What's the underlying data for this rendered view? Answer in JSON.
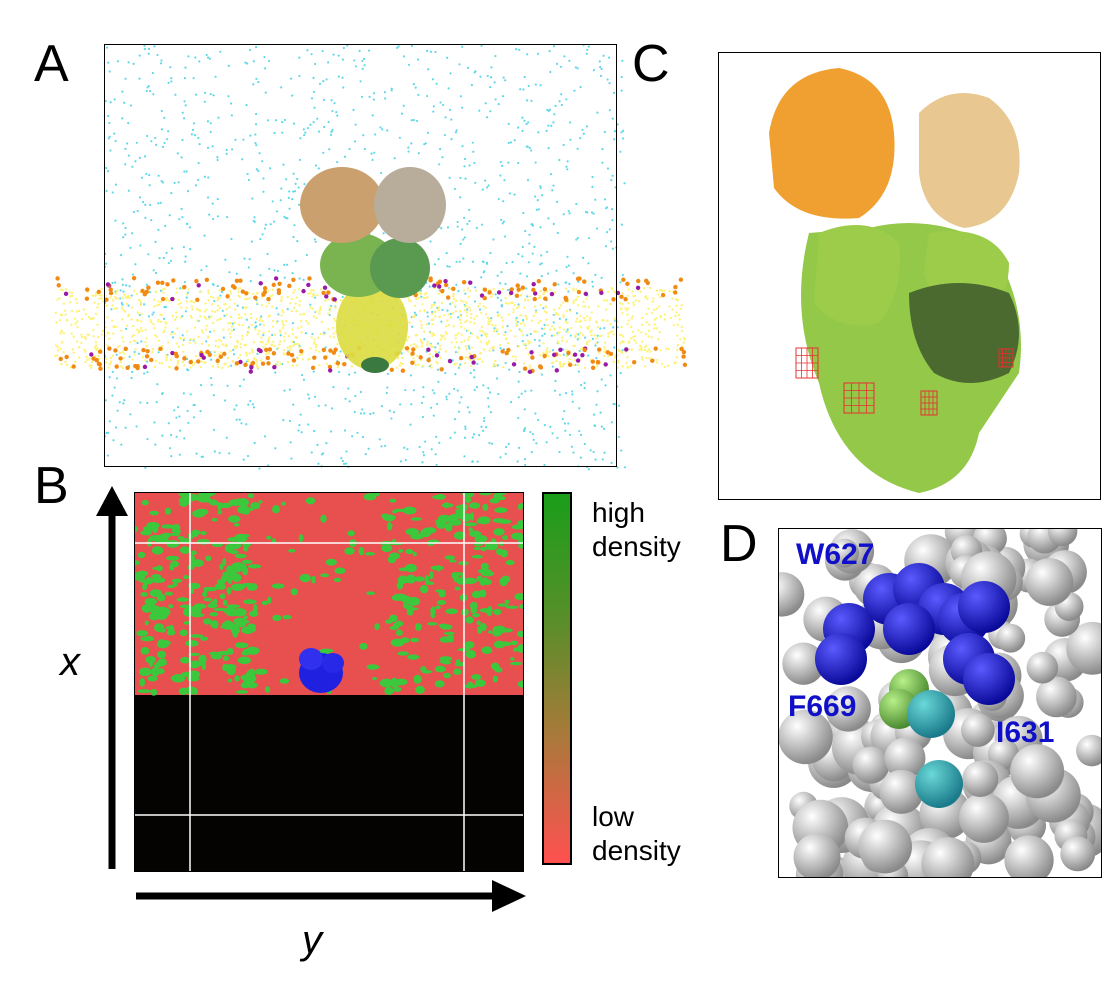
{
  "panels": {
    "a": {
      "letter": "A"
    },
    "b": {
      "letter": "B",
      "axis_x": "x",
      "axis_y": "y"
    },
    "c": {
      "letter": "C"
    },
    "d": {
      "letter": "D"
    }
  },
  "legend": {
    "top_line1": "high",
    "top_line2": "density",
    "bottom_line1": "low",
    "bottom_line2": "density",
    "color_high": "#1a9e1a",
    "color_low": "#ff5050"
  },
  "residues": {
    "w627": "W627",
    "f669": "F669",
    "i631": "I631"
  },
  "colors": {
    "water": "#5fd8e8",
    "lipid_tail": "#fff27a",
    "phosphate_orange": "#f08a12",
    "phosphate_purple": "#9a1aa8",
    "protein_orange": "#f0a030",
    "protein_tan": "#e8c890",
    "protein_lightgreen": "#9ccc4a",
    "protein_darkgreen": "#4a6a30",
    "mesh_red": "#e83030",
    "density_red": "#e85050",
    "density_green": "#3cc83c",
    "ligand_blue": "#2020e0"
  }
}
